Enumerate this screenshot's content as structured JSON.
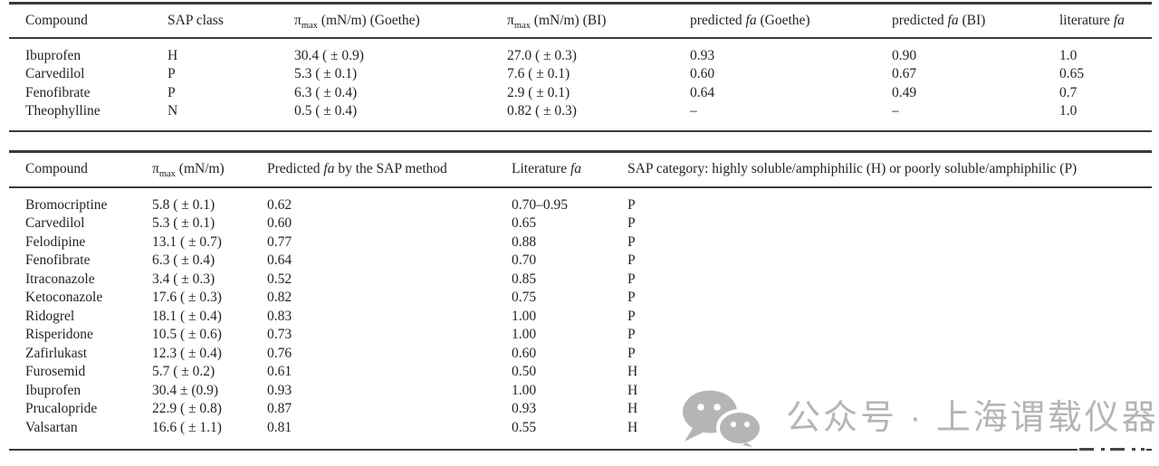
{
  "colors": {
    "text": "#232323",
    "rule": "#3a3a3a",
    "watermark": "#b5b5b5",
    "background": "#ffffff"
  },
  "table1": {
    "headers": {
      "compound": "Compound",
      "sap_class": "SAP class",
      "pimax_goethe": {
        "sym": "π",
        "sub": "max",
        "rest": " (mN/m) (Goethe)"
      },
      "pimax_bi": {
        "sym": "π",
        "sub": "max",
        "rest": " (mN/m) (BI)"
      },
      "pred_goethe": {
        "pre": "predicted ",
        "it": "fa",
        "post": " (Goethe)"
      },
      "pred_bi": {
        "pre": "predicted ",
        "it": "fa",
        "post": " (BI)"
      },
      "literature": {
        "pre": "literature ",
        "it": "fa",
        "post": ""
      }
    },
    "rows": [
      [
        "Ibuprofen",
        "H",
        "30.4 ( ± 0.9)",
        "27.0 ( ± 0.3)",
        "0.93",
        "0.90",
        "1.0"
      ],
      [
        "Carvedilol",
        "P",
        "5.3 ( ± 0.1)",
        "7.6 ( ± 0.1)",
        "0.60",
        "0.67",
        "0.65"
      ],
      [
        "Fenofibrate",
        "P",
        "6.3 ( ± 0.4)",
        "2.9 ( ± 0.1)",
        "0.64",
        "0.49",
        "0.7"
      ],
      [
        "Theophylline",
        "N",
        "0.5 ( ± 0.4)",
        "0.82 ( ± 0.3)",
        "–",
        "–",
        "1.0"
      ]
    ]
  },
  "table2": {
    "headers": {
      "compound": "Compound",
      "pimax": {
        "sym": "π",
        "sub": "max",
        "rest": " (mN/m)"
      },
      "predicted": {
        "pre": "Predicted ",
        "it": "fa",
        "post": " by the SAP method"
      },
      "literature": {
        "pre": "Literature ",
        "it": "fa",
        "post": ""
      },
      "sap_category": "SAP category: highly soluble/amphiphilic (H) or poorly soluble/amphiphilic (P)"
    },
    "rows": [
      [
        "Bromocriptine",
        "5.8 ( ± 0.1)",
        "0.62",
        "0.70–0.95",
        "P"
      ],
      [
        "Carvedilol",
        "5.3 ( ± 0.1)",
        "0.60",
        "0.65",
        "P"
      ],
      [
        "Felodipine",
        "13.1 ( ± 0.7)",
        "0.77",
        "0.88",
        "P"
      ],
      [
        "Fenofibrate",
        "6.3 ( ± 0.4)",
        "0.64",
        "0.70",
        "P"
      ],
      [
        "Itraconazole",
        "3.4 ( ± 0.3)",
        "0.52",
        "0.85",
        "P"
      ],
      [
        "Ketoconazole",
        "17.6 ( ± 0.3)",
        "0.82",
        "0.75",
        "P"
      ],
      [
        "Ridogrel",
        "18.1 ( ± 0.4)",
        "0.83",
        "1.00",
        "P"
      ],
      [
        "Risperidone",
        "10.5 ( ± 0.6)",
        "0.73",
        "1.00",
        "P"
      ],
      [
        "Zafirlukast",
        "12.3 ( ± 0.4)",
        "0.76",
        "0.60",
        "P"
      ],
      [
        "Furosemid",
        "5.7 ( ± 0.2)",
        "0.61",
        "0.50",
        "H"
      ],
      [
        "Ibuprofen",
        "30.4 ± (0.9)",
        "0.93",
        "1.00",
        "H"
      ],
      [
        "Prucalopride",
        "22.9 ( ± 0.8)",
        "0.87",
        "0.93",
        "H"
      ],
      [
        "Valsartan",
        "16.6 ( ± 1.1)",
        "0.81",
        "0.55",
        "H"
      ]
    ]
  },
  "watermark": {
    "text": "公众号 · 上海谓载仪器资讯"
  }
}
